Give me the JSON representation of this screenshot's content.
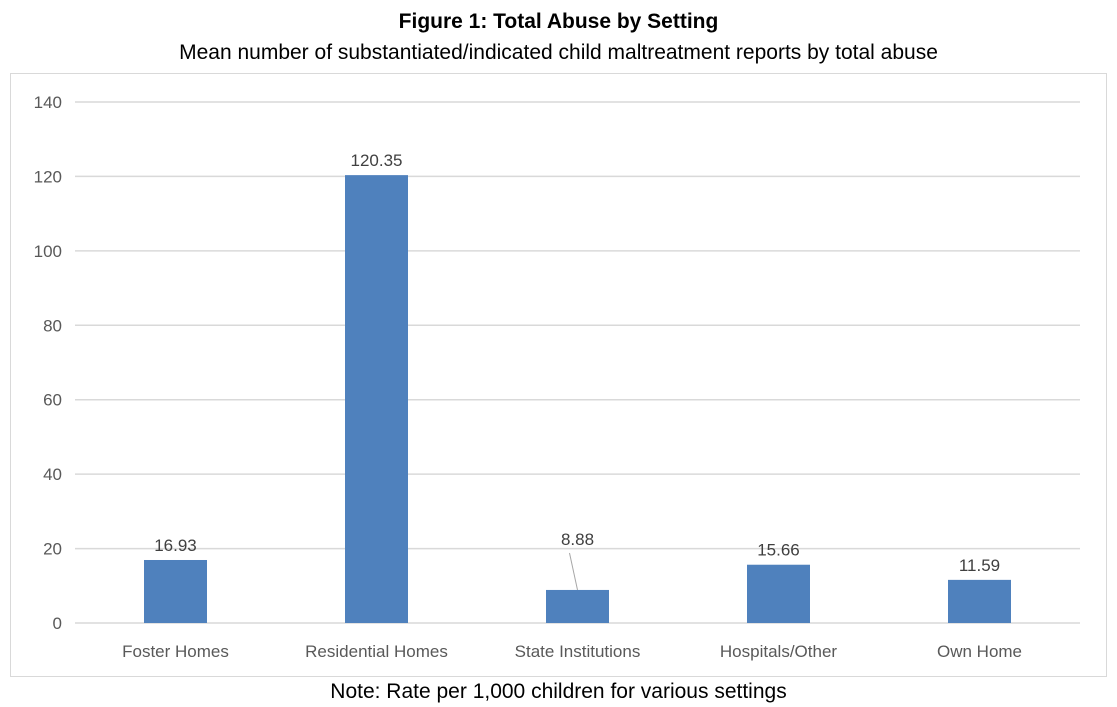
{
  "chart_data": {
    "type": "bar",
    "title": "Figure 1: Total Abuse by Setting",
    "subtitle": "Mean number of substantiated/indicated child maltreatment reports by total abuse",
    "note": "Note: Rate per 1,000 children for various settings",
    "categories": [
      "Foster Homes",
      "Residential Homes",
      "State Institutions",
      "Hospitals/Other",
      "Own Home"
    ],
    "values": [
      16.93,
      120.35,
      8.88,
      15.66,
      11.59
    ],
    "data_labels": [
      "16.93",
      "120.35",
      "8.88",
      "15.66",
      "11.59"
    ],
    "ylim": [
      0,
      140
    ],
    "yticks": [
      0,
      20,
      40,
      60,
      80,
      100,
      120,
      140
    ],
    "xlabel": "",
    "ylabel": "",
    "grid": true,
    "legend": "none",
    "bar_color": "#4f81bd",
    "grid_color": "#d9d9d9"
  }
}
